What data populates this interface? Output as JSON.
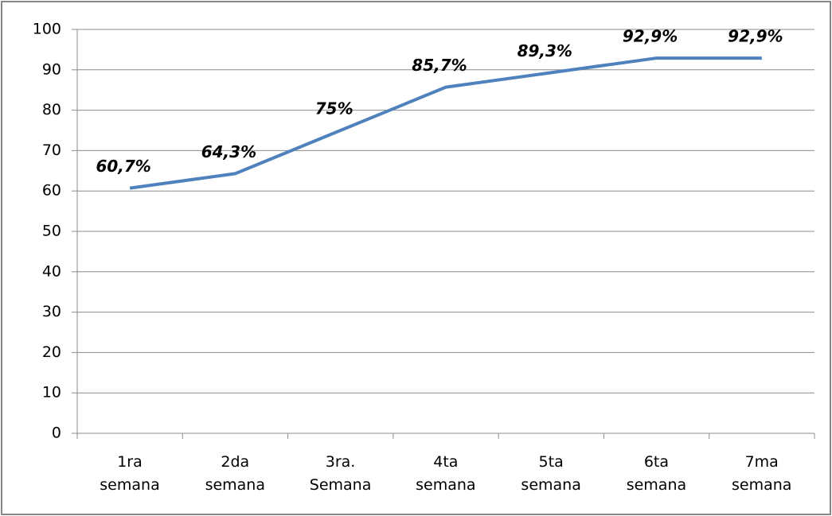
{
  "chart_data": {
    "type": "line",
    "categories": [
      "1ra\nsemana",
      "2da\nsemana",
      "3ra.\nSemana",
      "4ta\nsemana",
      "5ta\nsemana",
      "6ta\nsemana",
      "7ma\nsemana"
    ],
    "values": [
      60.7,
      64.3,
      75,
      85.7,
      89.3,
      92.9,
      92.9
    ],
    "value_labels": [
      "60,7%",
      "64,3%",
      "75%",
      "85,7%",
      "89,3%",
      "92,9%",
      "92,9%"
    ],
    "color": "#4f81bd",
    "ylim": [
      0,
      100
    ],
    "yticks": [
      0,
      10,
      20,
      30,
      40,
      50,
      60,
      70,
      80,
      90,
      100
    ],
    "grid": true
  }
}
